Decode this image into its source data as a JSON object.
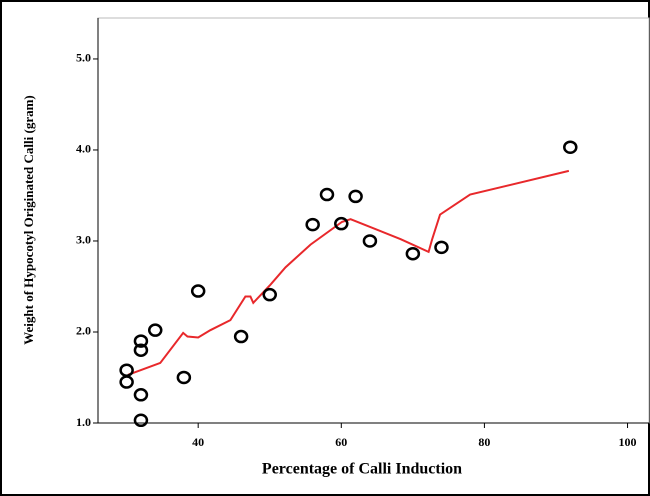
{
  "chart_data": {
    "type": "scatter",
    "x_label": "Percentage of Calli Induction",
    "y_label": "Weight of Hypocotyl Originated Calli (gram)",
    "x": [
      30,
      30,
      32,
      32,
      32,
      32,
      34,
      38,
      40,
      46,
      50,
      56,
      58,
      60,
      62,
      64,
      70,
      74,
      92
    ],
    "values": [
      1.58,
      1.45,
      1.9,
      1.8,
      1.31,
      1.03,
      2.02,
      1.5,
      2.45,
      1.95,
      2.41,
      3.18,
      3.51,
      3.19,
      3.49,
      3.0,
      2.86,
      2.93,
      4.03
    ],
    "color": "#000000",
    "fit_line": {
      "color": "#e8282b",
      "x": [
        30.2,
        34.7,
        37.9,
        38.5,
        40,
        41.7,
        44.5,
        46.6,
        47.3,
        47.7,
        50.1,
        52.2,
        55.7,
        60.1,
        61.3,
        68.3,
        72.2,
        72.7,
        73.8,
        78.0,
        91.8
      ],
      "values": [
        1.53,
        1.66,
        1.99,
        1.95,
        1.94,
        2.02,
        2.13,
        2.39,
        2.39,
        2.32,
        2.52,
        2.71,
        2.96,
        3.21,
        3.24,
        3.02,
        2.88,
        3.02,
        3.29,
        3.51,
        3.77
      ]
    },
    "xlim": [
      26,
      103
    ],
    "xticks": [
      40,
      60,
      80,
      100
    ],
    "ylim": [
      1.0,
      5.45
    ],
    "yticks": [
      {
        "value": 1.0,
        "label": "1.0"
      },
      {
        "value": 2.0,
        "label": "2.0"
      },
      {
        "value": 3.0,
        "label": "3.0"
      },
      {
        "value": 4.0,
        "label": "4.0"
      },
      {
        "value": 5.0,
        "label": "5.0"
      }
    ]
  }
}
